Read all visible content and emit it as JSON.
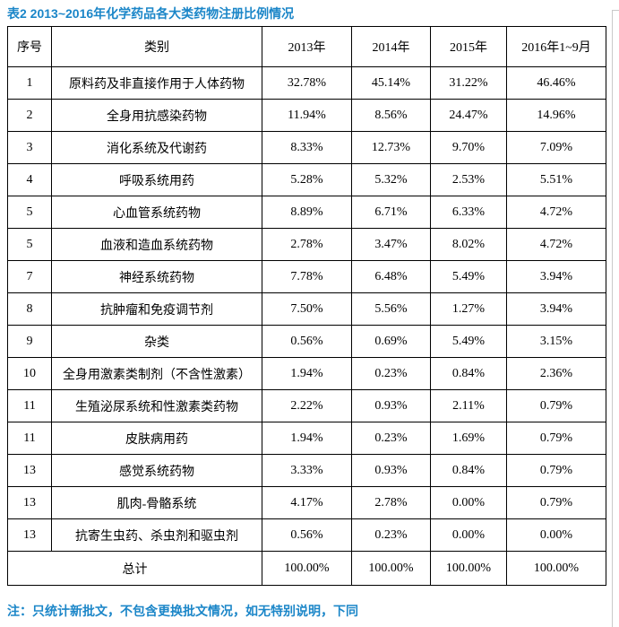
{
  "title": "表2 2013~2016年化学药品各大类药物注册比例情况",
  "note": "注：只统计新批文，不包含更换批文情况，如无特别说明，下同",
  "accent_color": "#1b86c8",
  "table": {
    "headers": [
      "序号",
      "类别",
      "2013年",
      "2014年",
      "2015年",
      "2016年1~9月"
    ],
    "rows": [
      {
        "no": "1",
        "category": "原料药及非直接作用于人体药物",
        "values": [
          "32.78%",
          "45.14%",
          "31.22%",
          "46.46%"
        ]
      },
      {
        "no": "2",
        "category": "全身用抗感染药物",
        "values": [
          "11.94%",
          "8.56%",
          "24.47%",
          "14.96%"
        ]
      },
      {
        "no": "3",
        "category": "消化系统及代谢药",
        "values": [
          "8.33%",
          "12.73%",
          "9.70%",
          "7.09%"
        ]
      },
      {
        "no": "4",
        "category": "呼吸系统用药",
        "values": [
          "5.28%",
          "5.32%",
          "2.53%",
          "5.51%"
        ]
      },
      {
        "no": "5",
        "category": "心血管系统药物",
        "values": [
          "8.89%",
          "6.71%",
          "6.33%",
          "4.72%"
        ]
      },
      {
        "no": "5",
        "category": "血液和造血系统药物",
        "values": [
          "2.78%",
          "3.47%",
          "8.02%",
          "4.72%"
        ]
      },
      {
        "no": "7",
        "category": "神经系统药物",
        "values": [
          "7.78%",
          "6.48%",
          "5.49%",
          "3.94%"
        ]
      },
      {
        "no": "8",
        "category": "抗肿瘤和免疫调节剂",
        "values": [
          "7.50%",
          "5.56%",
          "1.27%",
          "3.94%"
        ]
      },
      {
        "no": "9",
        "category": "杂类",
        "values": [
          "0.56%",
          "0.69%",
          "5.49%",
          "3.15%"
        ]
      },
      {
        "no": "10",
        "category": "全身用激素类制剂（不含性激素）",
        "values": [
          "1.94%",
          "0.23%",
          "0.84%",
          "2.36%"
        ]
      },
      {
        "no": "11",
        "category": "生殖泌尿系统和性激素类药物",
        "values": [
          "2.22%",
          "0.93%",
          "2.11%",
          "0.79%"
        ]
      },
      {
        "no": "11",
        "category": "皮肤病用药",
        "values": [
          "1.94%",
          "0.23%",
          "1.69%",
          "0.79%"
        ]
      },
      {
        "no": "13",
        "category": "感觉系统药物",
        "values": [
          "3.33%",
          "0.93%",
          "0.84%",
          "0.79%"
        ]
      },
      {
        "no": "13",
        "category": "肌肉-骨骼系统",
        "values": [
          "4.17%",
          "2.78%",
          "0.00%",
          "0.79%"
        ]
      },
      {
        "no": "13",
        "category": "抗寄生虫药、杀虫剂和驱虫剂",
        "values": [
          "0.56%",
          "0.23%",
          "0.00%",
          "0.00%"
        ]
      }
    ],
    "total": {
      "label": "总计",
      "values": [
        "100.00%",
        "100.00%",
        "100.00%",
        "100.00%"
      ]
    }
  }
}
